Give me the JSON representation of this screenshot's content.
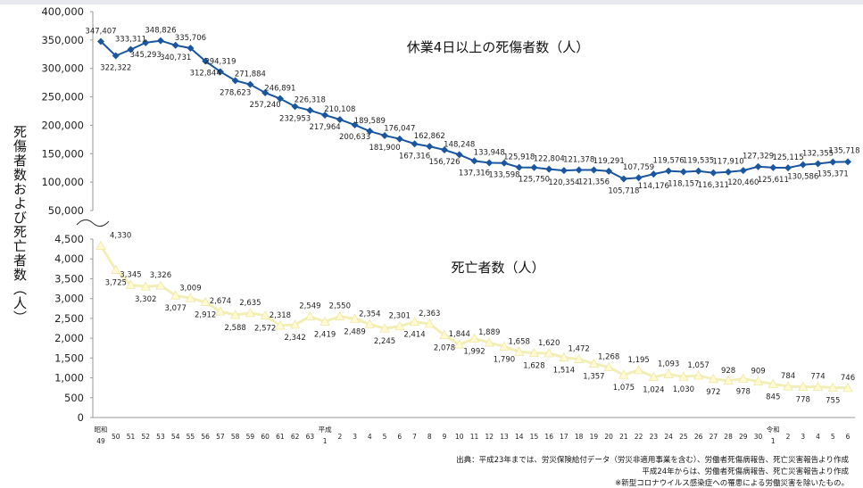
{
  "chart_data": {
    "type": "line",
    "ylabel": "死傷者数および死亡者数（人）",
    "categories": [
      "昭和49",
      "50",
      "51",
      "52",
      "53",
      "54",
      "55",
      "56",
      "57",
      "58",
      "59",
      "60",
      "61",
      "62",
      "63",
      "平成1",
      "2",
      "3",
      "4",
      "5",
      "6",
      "7",
      "8",
      "9",
      "10",
      "11",
      "12",
      "13",
      "14",
      "15",
      "16",
      "17",
      "18",
      "19",
      "20",
      "21",
      "22",
      "23",
      "24",
      "25",
      "26",
      "27",
      "28",
      "29",
      "30",
      "令和1",
      "2",
      "3",
      "4",
      "5",
      "6"
    ],
    "era_markers": [
      {
        "index": 0,
        "label": "昭和",
        "sub": "49"
      },
      {
        "index": 15,
        "label": "平成",
        "sub": "1"
      },
      {
        "index": 45,
        "label": "令和",
        "sub": "1"
      }
    ],
    "upper_axis": {
      "ticks": [
        50000,
        100000,
        150000,
        200000,
        250000,
        300000,
        350000,
        400000
      ],
      "tick_labels": [
        "50,000",
        "100,000",
        "150,000",
        "200,000",
        "250,000",
        "300,000",
        "350,000",
        "400,000"
      ],
      "ylim": [
        50000,
        400000
      ]
    },
    "lower_axis": {
      "ticks": [
        0,
        500,
        1000,
        1500,
        2000,
        2500,
        3000,
        3500,
        4000,
        4500
      ],
      "tick_labels": [
        "0",
        "500",
        "1,000",
        "1,500",
        "2,000",
        "2,500",
        "3,000",
        "3,500",
        "4,000",
        "4,500"
      ],
      "ylim": [
        0,
        4500
      ]
    },
    "series": [
      {
        "name": "休業4日以上の死傷者数（人）",
        "color": "#1a56a0",
        "values": [
          347407,
          322322,
          333311,
          345293,
          348826,
          340731,
          335706,
          312844,
          294319,
          278623,
          271884,
          257240,
          246891,
          232953,
          226318,
          217964,
          210108,
          200633,
          189589,
          181900,
          176047,
          167316,
          162862,
          156726,
          148248,
          137316,
          133948,
          133598,
          125918,
          125750,
          122804,
          120354,
          121378,
          121356,
          119291,
          105718,
          107759,
          114176,
          119576,
          118157,
          119535,
          116311,
          117910,
          120460,
          127329,
          125611,
          125115,
          130586,
          132355,
          135371,
          135718
        ],
        "labels": [
          "347,407",
          "322,322",
          "333,311",
          "345,293",
          "348,826",
          "340,731",
          "335,706",
          "312,844",
          "294,319",
          "278,623",
          "271,884",
          "257,240",
          "246,891",
          "232,953",
          "226,318",
          "217,964",
          "210,108",
          "200,633",
          "189,589",
          "181,900",
          "176,047",
          "167,316",
          "162,862",
          "156,726",
          "148,248",
          "137,316",
          "133,948",
          "133,598",
          "125,918",
          "125,750",
          "122,804",
          "120,354",
          "121,378",
          "121,356",
          "119,291",
          "105,718",
          "107,759",
          "114,176",
          "119,576",
          "118,157",
          "119,535",
          "116,311",
          "117,910",
          "120,460",
          "127,329",
          "125,611",
          "125,115",
          "130,586",
          "132,355",
          "135,371",
          "135,718"
        ]
      },
      {
        "name": "死亡者数（人）",
        "color": "#fffad2",
        "values": [
          4330,
          3725,
          3345,
          3302,
          3326,
          3077,
          3009,
          2912,
          2674,
          2588,
          2635,
          2572,
          2318,
          2342,
          2549,
          2419,
          2550,
          2489,
          2354,
          2245,
          2301,
          2414,
          2363,
          2078,
          1844,
          1992,
          1889,
          1790,
          1658,
          1628,
          1620,
          1514,
          1472,
          1357,
          1268,
          1075,
          1195,
          1024,
          1093,
          1030,
          1057,
          972,
          928,
          978,
          909,
          845,
          784,
          778,
          774,
          755,
          746
        ],
        "labels": [
          "4,330",
          "3,725",
          "3,345",
          "3,302",
          "3,326",
          "3,077",
          "3,009",
          "2,912",
          "2,674",
          "2,588",
          "2,635",
          "2,572",
          "2,318",
          "2,342",
          "2,549",
          "2,419",
          "2,550",
          "2,489",
          "2,354",
          "2,245",
          "2,301",
          "2,414",
          "2,363",
          "2,078",
          "1,844",
          "1,992",
          "1,889",
          "1,790",
          "1,658",
          "1,628",
          "1,620",
          "1,514",
          "1,472",
          "1,357",
          "1,268",
          "1,075",
          "1,195",
          "1,024",
          "1,093",
          "1,030",
          "1,057",
          "972",
          "928",
          "978",
          "909",
          "845",
          "784",
          "778",
          "774",
          "755",
          "746"
        ]
      }
    ],
    "grid": false,
    "legend": "inline titles"
  },
  "source_notes": [
    "出典：平成23年までは、労災保険給付データ（労災非適用事業を含む）、労働者死傷病報告、死亡災害報告より作成",
    "平成24年からは、労働者死傷病報告、死亡災害報告より作成",
    "※新型コロナウイルス感染症への罹患による労働災害を除いたもの。"
  ]
}
